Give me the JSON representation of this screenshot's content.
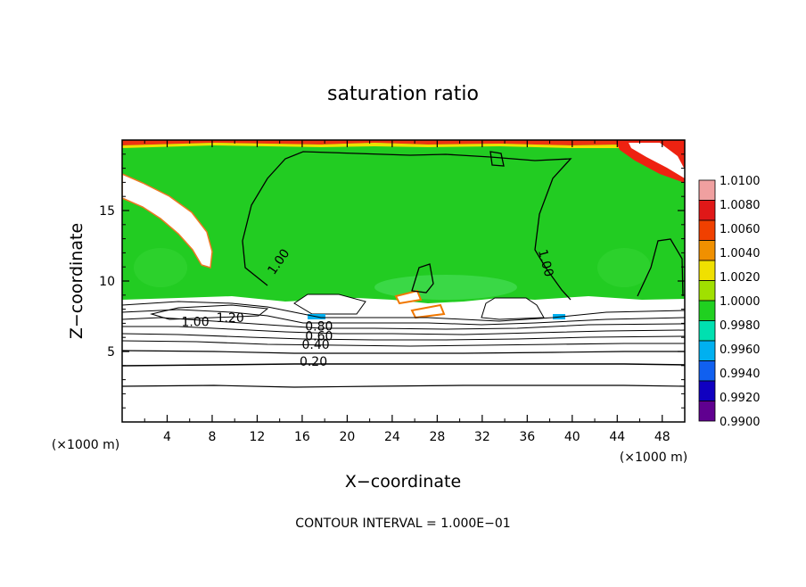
{
  "chart_data": {
    "type": "heatmap",
    "title": "saturation ratio",
    "xlabel": "X−coordinate",
    "ylabel": "Z−coordinate",
    "x_unit": "(×1000 m)",
    "z_unit": "(×1000 m)",
    "xlim": [
      0,
      50
    ],
    "ylim": [
      0,
      20
    ],
    "x_ticks": [
      4,
      8,
      12,
      16,
      20,
      24,
      28,
      32,
      36,
      40,
      44,
      48
    ],
    "y_ticks": [
      5,
      10,
      15
    ],
    "colorbar": {
      "levels": [
        "1.0100",
        "1.0080",
        "1.0060",
        "1.0040",
        "1.0020",
        "1.0000",
        "0.9980",
        "0.9960",
        "0.9940",
        "0.9920",
        "0.9900"
      ],
      "colors": [
        "#f0a0a0",
        "#e01818",
        "#f04000",
        "#f09000",
        "#f0e000",
        "#a0e000",
        "#20d020",
        "#00e0b0",
        "#00b0f0",
        "#1060f0",
        "#1000c0",
        "#600090"
      ]
    },
    "contour_labels": [
      {
        "text": "1.00",
        "x": 14.2,
        "z": 11.2
      },
      {
        "text": "1.00",
        "x": 37.3,
        "z": 11.2
      },
      {
        "text": "1.00",
        "x": 6.5,
        "z": 6.8
      },
      {
        "text": "1.20",
        "x": 9.6,
        "z": 7.1
      },
      {
        "text": "0.80",
        "x": 17.5,
        "z": 6.5
      },
      {
        "text": "0.60",
        "x": 17.5,
        "z": 5.8
      },
      {
        "text": "0.40",
        "x": 17.2,
        "z": 5.2
      },
      {
        "text": "0.20",
        "x": 17.0,
        "z": 4.0
      }
    ],
    "contour_interval_note": "CONTOUR INTERVAL = 1.000E−01"
  }
}
